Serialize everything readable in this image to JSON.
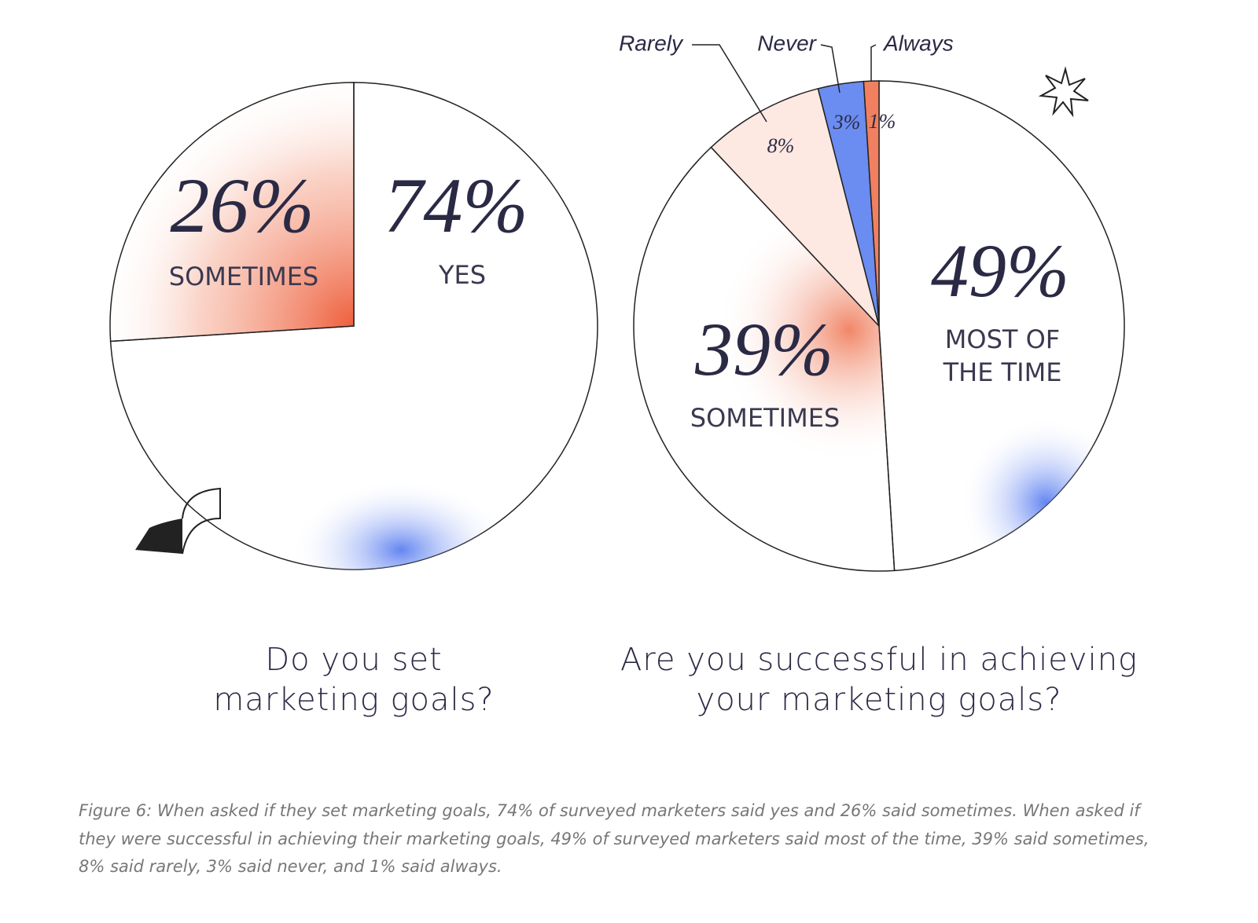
{
  "chart_data": [
    {
      "type": "pie",
      "title": "Do you set marketing goals?",
      "categories": [
        "YES",
        "SOMETIMES"
      ],
      "values": [
        74,
        26
      ],
      "value_labels": [
        "74%",
        "26%"
      ],
      "colors": [
        "#ffffff",
        "#ee6a48"
      ]
    },
    {
      "type": "pie",
      "title": "Are you successful in achieving your marketing goals?",
      "categories": [
        "MOST OF THE TIME",
        "SOMETIMES",
        "Rarely",
        "Never",
        "Always"
      ],
      "values": [
        49,
        39,
        8,
        3,
        1
      ],
      "value_labels": [
        "49%",
        "39%",
        "8%",
        "3%",
        "1%"
      ],
      "colors": [
        "#ffffff",
        "#ffffff",
        "#fde8e2",
        "#6b8cf0",
        "#f08060"
      ]
    }
  ],
  "caption": "Figure 6: When asked if they set marketing goals, 74% of surveyed marketers said yes and 26% said sometimes. When asked if they were successful in achieving their marketing goals, 49% of surveyed marketers said most of the time, 39% said sometimes, 8% said rarely, 3% said never, and 1% said always."
}
